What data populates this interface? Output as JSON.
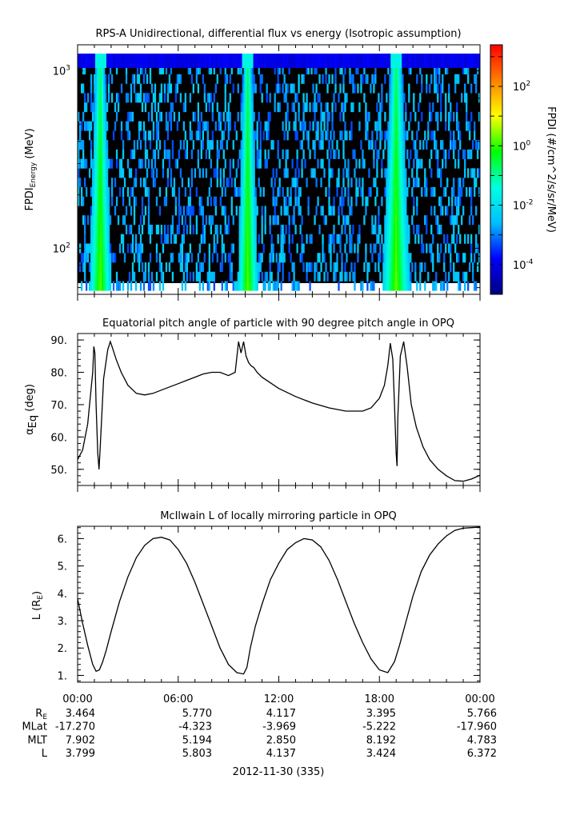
{
  "chart_data": [
    {
      "type": "heatmap",
      "title": "RPS-A Unidirectional, differential flux vs energy (Isotropic assumption)",
      "ylabel": {
        "main": "FPDI",
        "sub": "Energy",
        "unit": " (MeV)"
      },
      "yscale": "log",
      "ylim": [
        55,
        1400
      ],
      "ytick_labels": [
        {
          "value": 1000,
          "base": "10",
          "exp": "3"
        },
        {
          "value": 100,
          "base": "10",
          "exp": "2"
        }
      ],
      "colorbar": {
        "label": "FPDI (#/cm^2/s/sr/MeV)",
        "scale": "log",
        "range_log10": [
          -5,
          3.4
        ],
        "tick_labels": [
          {
            "exp": 2,
            "base": "10",
            "sup": "2"
          },
          {
            "exp": 0,
            "base": "10",
            "sup": "0"
          },
          {
            "exp": -2,
            "base": "10",
            "sup": "-2"
          },
          {
            "exp": -4,
            "base": "10",
            "sup": "-4"
          }
        ],
        "colormap": [
          "#00007f",
          "#0000ff",
          "#00bfff",
          "#00ffe0",
          "#00ff00",
          "#ffff00",
          "#ff8000",
          "#ff0000"
        ]
      },
      "features": {
        "top_channel_log10_flux": -3.8,
        "bands": [
          {
            "x_hours": [
              0.7,
              2.0
            ],
            "peak_hour": 1.35,
            "peak_log10_flux": 0.3
          },
          {
            "x_hours": [
              9.5,
              10.7
            ],
            "peak_hour": 10.15,
            "peak_log10_flux": 0.3
          },
          {
            "x_hours": [
              18.2,
              19.8
            ],
            "peak_hour": 19.0,
            "peak_log10_flux": 0.3
          }
        ]
      }
    },
    {
      "type": "line",
      "title": "Equatorial pitch angle of particle with 90 degree pitch angle in OPQ",
      "ylabel": {
        "main": "α",
        "sub": "Eq",
        "unit": " (deg)"
      },
      "ylim": [
        45,
        92
      ],
      "yticks": [
        50,
        60,
        70,
        80,
        90
      ],
      "ytick_labels": [
        "50.",
        "60.",
        "70.",
        "80.",
        "90."
      ],
      "x": [
        0,
        0.3,
        0.6,
        0.9,
        0.97,
        1.03,
        1.1,
        1.2,
        1.28,
        1.35,
        1.55,
        1.8,
        1.95,
        2.05,
        2.3,
        2.6,
        3,
        3.5,
        4,
        4.5,
        5,
        5.5,
        6,
        6.5,
        7,
        7.5,
        8,
        8.5,
        9,
        9.4,
        9.6,
        9.75,
        9.9,
        10.05,
        10.2,
        10.35,
        10.5,
        10.7,
        11,
        12,
        13,
        14,
        15,
        16,
        17,
        17.5,
        18,
        18.3,
        18.5,
        18.65,
        18.8,
        18.9,
        19.0,
        19.05,
        19.1,
        19.25,
        19.45,
        19.65,
        19.9,
        20.2,
        20.6,
        21,
        21.5,
        22,
        22.5,
        23,
        23.5,
        24
      ],
      "y": [
        53,
        56,
        64,
        80,
        88,
        86,
        70,
        55,
        50,
        57,
        78,
        87,
        89.5,
        88,
        84,
        80,
        76,
        73.5,
        73,
        73.5,
        74.5,
        75.5,
        76.5,
        77.5,
        78.5,
        79.5,
        80,
        80,
        79,
        80,
        89.5,
        86,
        89.5,
        85,
        83,
        82,
        81.5,
        80,
        78.5,
        75,
        72.5,
        70.5,
        69,
        68,
        68,
        69,
        72,
        76,
        82,
        89,
        84,
        70,
        55,
        51,
        66,
        85,
        89.5,
        82,
        70,
        63,
        57,
        53,
        50,
        48,
        46.5,
        46.3,
        47,
        48.2
      ]
    },
    {
      "type": "line",
      "title": "McIlwain L of locally mirroring particle in OPQ",
      "ylabel": {
        "main": "L (R",
        "sub": "E",
        "unit": ")"
      },
      "ylim": [
        0.75,
        6.45
      ],
      "yticks": [
        1,
        2,
        3,
        4,
        5,
        6
      ],
      "ytick_labels": [
        "1.",
        "2.",
        "3.",
        "4.",
        "5.",
        "6."
      ],
      "x": [
        0,
        0.3,
        0.6,
        0.9,
        1.1,
        1.3,
        1.5,
        1.7,
        2,
        2.5,
        3,
        3.5,
        4,
        4.5,
        5,
        5.5,
        6,
        6.5,
        7,
        7.5,
        8,
        8.5,
        9,
        9.5,
        9.9,
        10.1,
        10.3,
        10.6,
        11,
        11.5,
        12,
        12.5,
        13,
        13.5,
        14,
        14.5,
        15,
        15.5,
        16,
        16.5,
        17,
        17.5,
        18,
        18.5,
        18.9,
        19.2,
        19.6,
        20,
        20.5,
        21,
        21.5,
        22,
        22.5,
        23,
        23.5,
        24
      ],
      "y": [
        3.8,
        2.9,
        2.1,
        1.4,
        1.15,
        1.2,
        1.5,
        1.9,
        2.6,
        3.7,
        4.6,
        5.3,
        5.75,
        6.0,
        6.05,
        5.95,
        5.6,
        5.1,
        4.4,
        3.6,
        2.8,
        2.0,
        1.4,
        1.1,
        1.05,
        1.3,
        2.0,
        2.8,
        3.6,
        4.5,
        5.1,
        5.6,
        5.85,
        6.0,
        5.95,
        5.7,
        5.2,
        4.5,
        3.7,
        2.9,
        2.2,
        1.6,
        1.2,
        1.1,
        1.5,
        2.1,
        3.0,
        3.9,
        4.8,
        5.4,
        5.8,
        6.1,
        6.3,
        6.38,
        6.4,
        6.42
      ]
    }
  ],
  "xaxis": {
    "range_hours": [
      0,
      24
    ],
    "tick_labels": [
      "00:00",
      "06:00",
      "12:00",
      "18:00",
      "00:00"
    ],
    "tick_hours": [
      0,
      6,
      12,
      18,
      24
    ],
    "date_label": "2012-11-30 (335)"
  },
  "ephemeris": [
    {
      "name": "R",
      "sub": "E",
      "values": [
        "3.464",
        "5.770",
        "4.117",
        "3.395",
        "5.766"
      ]
    },
    {
      "name": "MLat",
      "sub": "",
      "values": [
        "-17.270",
        "-4.323",
        "-3.969",
        "-5.222",
        "-17.960"
      ]
    },
    {
      "name": "MLT",
      "sub": "",
      "values": [
        "7.902",
        "5.194",
        "2.850",
        "8.192",
        "4.783"
      ]
    },
    {
      "name": "L",
      "sub": "",
      "values": [
        "3.799",
        "5.803",
        "4.137",
        "3.424",
        "6.372"
      ]
    }
  ]
}
